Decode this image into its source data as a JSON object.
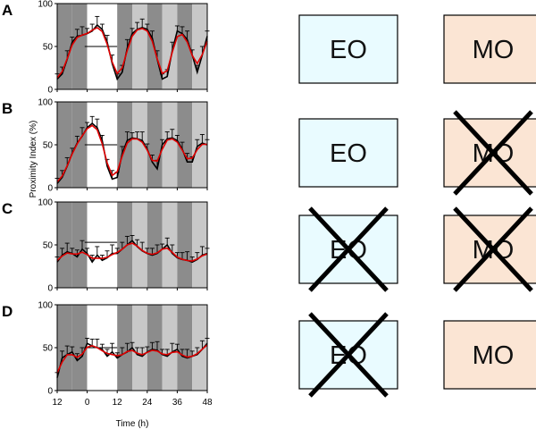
{
  "colors": {
    "dark_gray": "#8c8c8c",
    "light_gray": "#c8c8c8",
    "light_period": "#ffffff",
    "series_line": "#e00000",
    "error_bars": "#000000",
    "eo_fill": "#e9fbff",
    "mo_fill": "#fbe5d4",
    "cross": "#000000"
  },
  "x_axis": {
    "label": "Time (h)",
    "ticks": [
      -12,
      0,
      12,
      24,
      36,
      48
    ],
    "tick_labels": [
      "12",
      "0",
      "12",
      "24",
      "36",
      "48"
    ]
  },
  "y_axis": {
    "label": "Proximity Index (%)",
    "ticks": [
      0,
      50,
      100
    ],
    "tick_labels": [
      "0",
      "50",
      "100"
    ]
  },
  "chart_data": [
    {
      "panel": "A",
      "type": "line",
      "x": [
        -12,
        -10,
        -8,
        -6,
        -4,
        -2,
        0,
        2,
        4,
        6,
        8,
        10,
        12,
        14,
        16,
        18,
        20,
        22,
        24,
        26,
        28,
        30,
        32,
        34,
        36,
        38,
        40,
        42,
        44,
        46,
        48
      ],
      "y": [
        12,
        18,
        35,
        55,
        62,
        63,
        65,
        68,
        75,
        70,
        55,
        30,
        12,
        20,
        48,
        65,
        70,
        72,
        70,
        60,
        35,
        12,
        15,
        45,
        68,
        65,
        58,
        40,
        20,
        40,
        62
      ],
      "reference_y": 50,
      "eo_crossed": false,
      "mo_crossed": false
    },
    {
      "panel": "B",
      "type": "line",
      "x": [
        -12,
        -10,
        -8,
        -6,
        -4,
        -2,
        0,
        2,
        4,
        6,
        8,
        10,
        12,
        14,
        16,
        18,
        20,
        22,
        24,
        26,
        28,
        30,
        32,
        34,
        36,
        38,
        40,
        42,
        44,
        46,
        48
      ],
      "y": [
        5,
        12,
        25,
        40,
        52,
        60,
        70,
        75,
        70,
        55,
        25,
        10,
        12,
        40,
        55,
        58,
        57,
        55,
        45,
        30,
        22,
        50,
        57,
        58,
        55,
        45,
        30,
        30,
        48,
        52,
        50
      ],
      "reference_y": 50,
      "eo_crossed": false,
      "mo_crossed": true
    },
    {
      "panel": "C",
      "type": "line",
      "x": [
        -12,
        -10,
        -8,
        -6,
        -4,
        -2,
        0,
        2,
        4,
        6,
        8,
        10,
        12,
        14,
        16,
        18,
        20,
        22,
        24,
        26,
        28,
        30,
        32,
        34,
        36,
        38,
        40,
        42,
        44,
        46,
        48
      ],
      "y": [
        30,
        38,
        42,
        40,
        36,
        45,
        40,
        30,
        38,
        32,
        35,
        40,
        40,
        45,
        50,
        55,
        48,
        43,
        40,
        38,
        40,
        45,
        50,
        40,
        35,
        33,
        32,
        30,
        33,
        38,
        40
      ],
      "reference_y": 53,
      "eo_crossed": true,
      "mo_crossed": true
    },
    {
      "panel": "D",
      "type": "line",
      "x": [
        -12,
        -10,
        -8,
        -6,
        -4,
        -2,
        0,
        2,
        4,
        6,
        8,
        10,
        12,
        14,
        16,
        18,
        20,
        22,
        24,
        26,
        28,
        30,
        32,
        34,
        36,
        38,
        40,
        42,
        44,
        46,
        48
      ],
      "y": [
        15,
        38,
        42,
        45,
        35,
        40,
        55,
        52,
        50,
        48,
        40,
        45,
        38,
        42,
        45,
        50,
        42,
        40,
        45,
        48,
        47,
        42,
        40,
        45,
        48,
        40,
        38,
        40,
        42,
        48,
        55
      ],
      "reference_y": 50,
      "eo_crossed": true,
      "mo_crossed": false
    }
  ],
  "panels": [
    {
      "letter": "A",
      "eo": "EO",
      "mo": "MO"
    },
    {
      "letter": "B",
      "eo": "EO",
      "mo": "MO"
    },
    {
      "letter": "C",
      "eo": "EO",
      "mo": "MO"
    },
    {
      "letter": "D",
      "eo": "EO",
      "mo": "MO"
    }
  ]
}
